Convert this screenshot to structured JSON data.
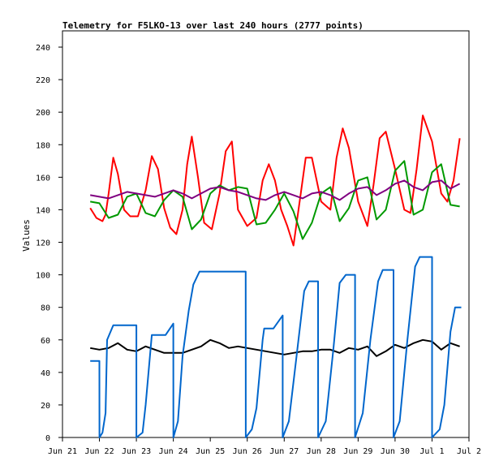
{
  "chart_data": {
    "type": "line",
    "title": "Telemetry for F5LKO-13 over last 240 hours (2777 points)",
    "xlabel": "",
    "ylabel": "Values",
    "ylim": [
      0,
      250
    ],
    "yticks": [
      0,
      20,
      40,
      60,
      80,
      100,
      120,
      140,
      160,
      180,
      200,
      220,
      240
    ],
    "xlim": [
      "2024-06-21",
      "2024-07-02"
    ],
    "x_ticks": [
      "Jun 21",
      "Jun 22",
      "Jun 23",
      "Jun 24",
      "Jun 25",
      "Jun 26",
      "Jun 27",
      "Jun 28",
      "Jun 29",
      "Jun 30",
      "Jul 1",
      "Jul 2"
    ],
    "grid": false,
    "legend": "none",
    "series": [
      {
        "color": "#ff0000",
        "x": [
          "2024-06-21 18:00",
          "2024-06-21 22:00",
          "2024-06-22 02:00",
          "2024-06-22 04:00",
          "2024-06-22 06:00",
          "2024-06-22 09:00",
          "2024-06-22 12:00",
          "2024-06-22 16:00",
          "2024-06-22 20:00",
          "2024-06-23 01:00",
          "2024-06-23 06:00",
          "2024-06-23 10:00",
          "2024-06-23 14:00",
          "2024-06-23 18:00",
          "2024-06-23 22:00",
          "2024-06-24 02:00",
          "2024-06-24 06:00",
          "2024-06-24 09:00",
          "2024-06-24 12:00",
          "2024-06-24 16:00",
          "2024-06-24 20:00",
          "2024-06-25 01:00",
          "2024-06-25 06:00",
          "2024-06-25 10:00",
          "2024-06-25 14:00",
          "2024-06-25 18:00",
          "2024-06-26 00:00",
          "2024-06-26 06:00",
          "2024-06-26 10:00",
          "2024-06-26 14:00",
          "2024-06-26 18:00",
          "2024-06-26 22:00",
          "2024-06-27 02:00",
          "2024-06-27 06:00",
          "2024-06-27 10:00",
          "2024-06-27 14:00",
          "2024-06-27 18:00",
          "2024-06-28 00:00",
          "2024-06-28 06:00",
          "2024-06-28 10:00",
          "2024-06-28 14:00",
          "2024-06-28 18:00",
          "2024-06-29 00:00",
          "2024-06-29 06:00",
          "2024-06-29 10:00",
          "2024-06-29 14:00",
          "2024-06-29 18:00",
          "2024-06-30 00:00",
          "2024-06-30 06:00",
          "2024-06-30 10:00",
          "2024-06-30 14:00",
          "2024-06-30 18:00",
          "2024-07-01 00:00",
          "2024-07-01 06:00",
          "2024-07-01 10:00",
          "2024-07-01 14:00",
          "2024-07-01 18:00"
        ],
        "y": [
          141,
          135,
          133,
          137,
          150,
          172,
          162,
          140,
          136,
          136,
          152,
          173,
          165,
          141,
          129,
          125,
          140,
          168,
          185,
          160,
          132,
          128,
          150,
          176,
          182,
          140,
          130,
          135,
          158,
          168,
          158,
          140,
          130,
          118,
          145,
          172,
          172,
          145,
          140,
          172,
          190,
          178,
          145,
          130,
          155,
          184,
          188,
          165,
          140,
          138,
          165,
          198,
          182,
          150,
          145,
          158,
          184
        ]
      },
      {
        "color": "#009900",
        "x": [
          "2024-06-21 18:00",
          "2024-06-22 00:00",
          "2024-06-22 06:00",
          "2024-06-22 12:00",
          "2024-06-22 18:00",
          "2024-06-23 00:00",
          "2024-06-23 06:00",
          "2024-06-23 12:00",
          "2024-06-23 18:00",
          "2024-06-24 00:00",
          "2024-06-24 06:00",
          "2024-06-24 12:00",
          "2024-06-24 18:00",
          "2024-06-25 00:00",
          "2024-06-25 06:00",
          "2024-06-25 12:00",
          "2024-06-25 18:00",
          "2024-06-26 00:00",
          "2024-06-26 06:00",
          "2024-06-26 12:00",
          "2024-06-26 18:00",
          "2024-06-27 00:00",
          "2024-06-27 06:00",
          "2024-06-27 12:00",
          "2024-06-27 18:00",
          "2024-06-28 00:00",
          "2024-06-28 06:00",
          "2024-06-28 12:00",
          "2024-06-28 18:00",
          "2024-06-29 00:00",
          "2024-06-29 06:00",
          "2024-06-29 12:00",
          "2024-06-29 18:00",
          "2024-06-30 00:00",
          "2024-06-30 06:00",
          "2024-06-30 12:00",
          "2024-06-30 18:00",
          "2024-07-01 00:00",
          "2024-07-01 06:00",
          "2024-07-01 12:00",
          "2024-07-01 18:00"
        ],
        "y": [
          145,
          144,
          135,
          137,
          148,
          150,
          138,
          136,
          146,
          152,
          148,
          128,
          134,
          150,
          155,
          152,
          154,
          153,
          131,
          132,
          140,
          150,
          139,
          122,
          132,
          150,
          154,
          133,
          141,
          158,
          160,
          134,
          140,
          164,
          170,
          137,
          140,
          163,
          168,
          143,
          142
        ]
      },
      {
        "color": "#800080",
        "x": [
          "2024-06-21 18:00",
          "2024-06-22 00:00",
          "2024-06-22 06:00",
          "2024-06-22 12:00",
          "2024-06-22 18:00",
          "2024-06-23 00:00",
          "2024-06-23 06:00",
          "2024-06-23 12:00",
          "2024-06-23 18:00",
          "2024-06-24 00:00",
          "2024-06-24 06:00",
          "2024-06-24 12:00",
          "2024-06-24 18:00",
          "2024-06-25 00:00",
          "2024-06-25 06:00",
          "2024-06-25 12:00",
          "2024-06-25 18:00",
          "2024-06-26 00:00",
          "2024-06-26 06:00",
          "2024-06-26 12:00",
          "2024-06-26 18:00",
          "2024-06-27 00:00",
          "2024-06-27 06:00",
          "2024-06-27 12:00",
          "2024-06-27 18:00",
          "2024-06-28 00:00",
          "2024-06-28 06:00",
          "2024-06-28 12:00",
          "2024-06-28 18:00",
          "2024-06-29 00:00",
          "2024-06-29 06:00",
          "2024-06-29 12:00",
          "2024-06-29 18:00",
          "2024-06-30 00:00",
          "2024-06-30 06:00",
          "2024-06-30 12:00",
          "2024-06-30 18:00",
          "2024-07-01 00:00",
          "2024-07-01 06:00",
          "2024-07-01 12:00",
          "2024-07-01 18:00"
        ],
        "y": [
          149,
          148,
          147,
          149,
          151,
          150,
          149,
          148,
          150,
          152,
          150,
          147,
          150,
          153,
          154,
          152,
          151,
          149,
          147,
          146,
          149,
          151,
          149,
          147,
          150,
          151,
          149,
          146,
          150,
          153,
          154,
          149,
          152,
          156,
          158,
          154,
          152,
          157,
          158,
          153,
          156
        ]
      },
      {
        "color": "#000000",
        "x": [
          "2024-06-21 18:00",
          "2024-06-22 00:00",
          "2024-06-22 06:00",
          "2024-06-22 12:00",
          "2024-06-22 18:00",
          "2024-06-23 00:00",
          "2024-06-23 06:00",
          "2024-06-23 12:00",
          "2024-06-23 18:00",
          "2024-06-24 00:00",
          "2024-06-24 06:00",
          "2024-06-24 12:00",
          "2024-06-24 18:00",
          "2024-06-25 00:00",
          "2024-06-25 06:00",
          "2024-06-25 12:00",
          "2024-06-25 18:00",
          "2024-06-26 00:00",
          "2024-06-26 06:00",
          "2024-06-26 12:00",
          "2024-06-26 18:00",
          "2024-06-27 00:00",
          "2024-06-27 06:00",
          "2024-06-27 12:00",
          "2024-06-27 18:00",
          "2024-06-28 00:00",
          "2024-06-28 06:00",
          "2024-06-28 12:00",
          "2024-06-28 18:00",
          "2024-06-29 00:00",
          "2024-06-29 06:00",
          "2024-06-29 12:00",
          "2024-06-29 18:00",
          "2024-06-30 00:00",
          "2024-06-30 06:00",
          "2024-06-30 12:00",
          "2024-06-30 18:00",
          "2024-07-01 00:00",
          "2024-07-01 06:00",
          "2024-07-01 12:00",
          "2024-07-01 18:00"
        ],
        "y": [
          55,
          54,
          55,
          58,
          54,
          53,
          56,
          54,
          52,
          52,
          52,
          54,
          56,
          60,
          58,
          55,
          56,
          55,
          54,
          53,
          52,
          51,
          52,
          53,
          53,
          54,
          54,
          52,
          55,
          54,
          56,
          50,
          53,
          57,
          55,
          58,
          60,
          59,
          54,
          58,
          56
        ]
      },
      {
        "color": "#0066cc",
        "x": [
          "2024-06-21 18:00",
          "2024-06-22 00:00",
          "2024-06-22 00:01",
          "2024-06-22 02:00",
          "2024-06-22 04:00",
          "2024-06-22 05:00",
          "2024-06-22 09:00",
          "2024-06-22 12:00",
          "2024-06-22 12:01",
          "2024-06-23 00:00",
          "2024-06-23 00:01",
          "2024-06-23 04:00",
          "2024-06-23 06:00",
          "2024-06-23 10:00",
          "2024-06-23 12:00",
          "2024-06-23 19:00",
          "2024-06-24 00:00",
          "2024-06-24 00:01",
          "2024-06-24 03:00",
          "2024-06-24 06:00",
          "2024-06-24 10:00",
          "2024-06-24 13:00",
          "2024-06-24 17:00",
          "2024-06-25 02:00",
          "2024-06-25 08:00",
          "2024-06-25 23:00",
          "2024-06-25 23:01",
          "2024-06-26 03:00",
          "2024-06-26 06:00",
          "2024-06-26 10:00",
          "2024-06-26 11:00",
          "2024-06-26 17:00",
          "2024-06-26 23:00",
          "2024-06-26 23:01",
          "2024-06-27 03:00",
          "2024-06-27 08:00",
          "2024-06-27 13:00",
          "2024-06-27 16:00",
          "2024-06-27 22:00",
          "2024-06-27 22:01",
          "2024-06-28 03:00",
          "2024-06-28 08:00",
          "2024-06-28 12:00",
          "2024-06-28 16:00",
          "2024-06-28 22:00",
          "2024-06-28 22:01",
          "2024-06-29 03:00",
          "2024-06-29 08:00",
          "2024-06-29 13:00",
          "2024-06-29 16:00",
          "2024-06-29 23:00",
          "2024-06-29 23:01",
          "2024-06-30 03:00",
          "2024-06-30 08:00",
          "2024-06-30 13:00",
          "2024-06-30 16:00",
          "2024-07-01 00:00",
          "2024-07-01 00:01",
          "2024-07-01 05:00",
          "2024-07-01 08:00",
          "2024-07-01 12:00",
          "2024-07-01 15:00",
          "2024-07-01 19:00"
        ],
        "y": [
          47,
          47,
          0,
          3,
          15,
          60,
          69,
          69,
          69,
          69,
          0,
          3,
          20,
          63,
          63,
          63,
          70,
          0,
          10,
          50,
          78,
          94,
          102,
          102,
          102,
          102,
          0,
          5,
          18,
          60,
          67,
          67,
          75,
          0,
          10,
          50,
          90,
          96,
          96,
          0,
          10,
          55,
          95,
          100,
          100,
          0,
          15,
          60,
          96,
          103,
          103,
          0,
          10,
          60,
          105,
          111,
          111,
          0,
          5,
          20,
          65,
          80,
          80
        ]
      }
    ]
  }
}
